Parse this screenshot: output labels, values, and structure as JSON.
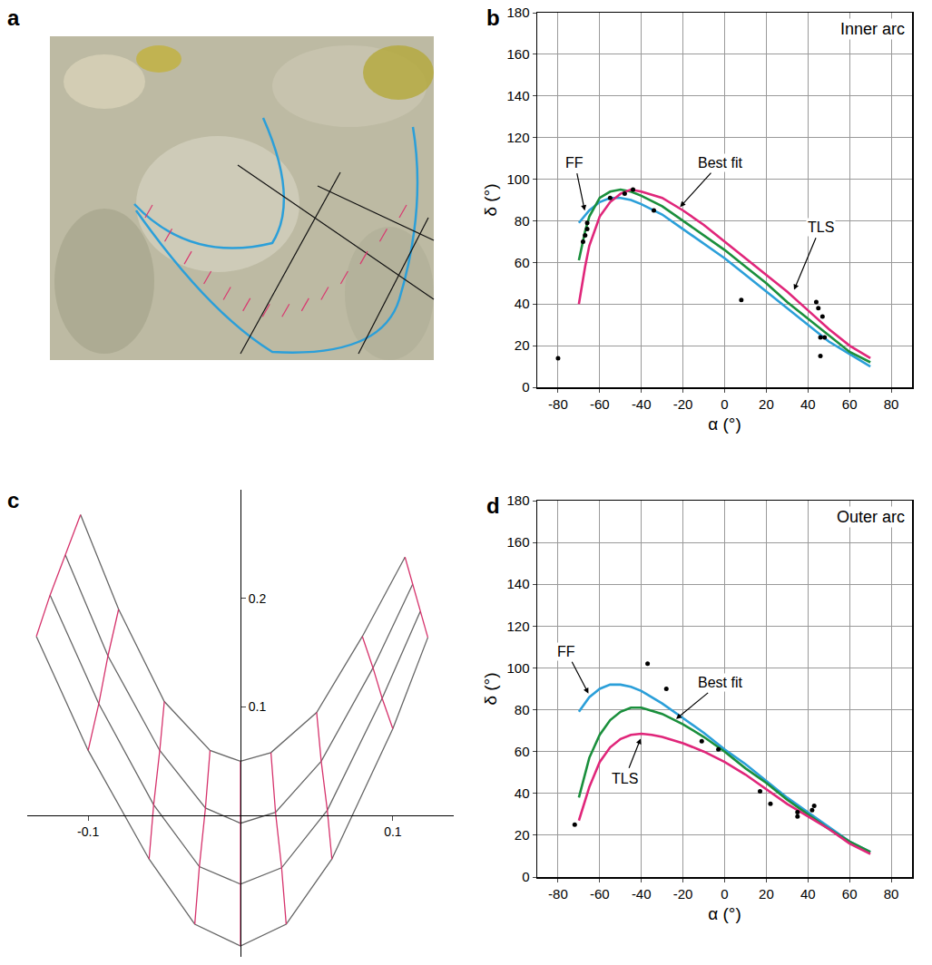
{
  "chart_data": [
    {
      "panel": "a",
      "type": "image"
    },
    {
      "panel": "b",
      "type": "line",
      "title": "Inner arc",
      "xlabel": "α (°)",
      "ylabel": "δ (°)",
      "xlim": [
        -90,
        90
      ],
      "xticks": [
        -80,
        -60,
        -40,
        -20,
        0,
        20,
        40,
        60,
        80
      ],
      "ylim": [
        0,
        180
      ],
      "yticks": [
        0,
        20,
        40,
        60,
        80,
        100,
        120,
        140,
        160,
        180
      ],
      "grid": true,
      "series": [
        {
          "name": "FF",
          "color": "#2b9fd9",
          "type": "line",
          "x": [
            -70,
            -65,
            -60,
            -55,
            -50,
            -45,
            -40,
            -30,
            -20,
            -10,
            0,
            10,
            20,
            30,
            40,
            50,
            60,
            70
          ],
          "values": [
            79,
            85,
            89,
            91,
            91,
            90,
            88,
            83,
            76,
            69,
            62,
            54,
            46,
            38,
            30,
            22,
            16,
            10
          ],
          "arrow_to": [
            -67,
            84
          ],
          "label_xy": [
            -72,
            108
          ]
        },
        {
          "name": "Best fit",
          "color": "#1a8f3c",
          "type": "line",
          "x": [
            -70,
            -67,
            -65,
            -60,
            -55,
            -50,
            -45,
            -40,
            -30,
            -20,
            -10,
            0,
            10,
            20,
            30,
            40,
            50,
            60,
            70
          ],
          "values": [
            61,
            75,
            82,
            91,
            94,
            95,
            94,
            92,
            87,
            80,
            73,
            66,
            58,
            50,
            41,
            33,
            25,
            17,
            12
          ],
          "arrow_to": [
            -22,
            86
          ],
          "label_xy": [
            -2,
            108
          ]
        },
        {
          "name": "TLS",
          "color": "#e0267a",
          "type": "line",
          "x": [
            -70,
            -67,
            -65,
            -60,
            -55,
            -50,
            -45,
            -40,
            -30,
            -20,
            -10,
            0,
            10,
            20,
            30,
            40,
            50,
            60,
            70
          ],
          "values": [
            40,
            58,
            68,
            82,
            89,
            93,
            95,
            94,
            91,
            85,
            78,
            70,
            62,
            54,
            46,
            37,
            28,
            20,
            14
          ],
          "arrow_to": [
            33,
            46
          ],
          "label_xy": [
            46,
            77
          ]
        },
        {
          "color": "#000000",
          "type": "scatter",
          "marker": "circle",
          "x": [
            -80,
            -68,
            -67,
            -66,
            -66,
            -55,
            -48,
            -44,
            -34,
            8,
            44,
            45,
            47,
            46,
            48,
            46
          ],
          "values": [
            14,
            70,
            73,
            76,
            79,
            91,
            93,
            95,
            85,
            42,
            41,
            38,
            34,
            24,
            24,
            15
          ]
        }
      ]
    },
    {
      "panel": "c",
      "type": "mesh",
      "xlim": [
        -0.14,
        0.14
      ],
      "xticks": [
        -0.1,
        0.1
      ],
      "ylim": [
        -0.13,
        0.3
      ],
      "yticks": [
        0.1,
        0.2
      ],
      "series": [
        {
          "color": "#666666",
          "x": [
            -0.105,
            -0.08,
            -0.05,
            -0.02,
            0,
            0.02,
            0.05,
            0.08,
            0.108
          ],
          "values": [
            0.277,
            0.19,
            0.105,
            0.06,
            0.05,
            0.058,
            0.095,
            0.165,
            0.238
          ]
        },
        {
          "color": "#666666",
          "x": [
            -0.115,
            -0.087,
            -0.053,
            -0.023,
            0,
            0.023,
            0.053,
            0.087,
            0.113
          ],
          "values": [
            0.24,
            0.147,
            0.06,
            0.007,
            -0.007,
            0.003,
            0.05,
            0.136,
            0.213
          ]
        },
        {
          "color": "#666666",
          "x": [
            -0.125,
            -0.093,
            -0.057,
            -0.027,
            0,
            0.027,
            0.057,
            0.093,
            0.118
          ],
          "values": [
            0.203,
            0.103,
            0.01,
            -0.047,
            -0.063,
            -0.048,
            0.005,
            0.108,
            0.188
          ]
        },
        {
          "color": "#666666",
          "x": [
            -0.134,
            -0.1,
            -0.06,
            -0.03,
            0,
            0.03,
            0.06,
            0.1,
            0.123
          ],
          "values": [
            0.165,
            0.06,
            -0.04,
            -0.1,
            -0.12,
            -0.1,
            -0.04,
            0.08,
            0.164
          ]
        }
      ]
    },
    {
      "panel": "d",
      "type": "line",
      "title": "Outer arc",
      "xlabel": "α (°)",
      "ylabel": "δ (°)",
      "xlim": [
        -90,
        90
      ],
      "xticks": [
        -80,
        -60,
        -40,
        -20,
        0,
        20,
        40,
        60,
        80
      ],
      "ylim": [
        0,
        180
      ],
      "yticks": [
        0,
        20,
        40,
        60,
        80,
        100,
        120,
        140,
        160,
        180
      ],
      "grid": true,
      "series": [
        {
          "name": "FF",
          "color": "#2b9fd9",
          "type": "line",
          "x": [
            -70,
            -65,
            -60,
            -55,
            -50,
            -45,
            -40,
            -30,
            -20,
            -10,
            0,
            10,
            20,
            30,
            40,
            50,
            60,
            70
          ],
          "values": [
            79,
            86,
            90,
            92,
            92,
            91,
            89,
            83,
            76,
            69,
            61,
            54,
            46,
            38,
            31,
            24,
            17,
            12
          ],
          "arrow_to": [
            -65,
            87
          ],
          "label_xy": [
            -76,
            108
          ]
        },
        {
          "name": "Best fit",
          "color": "#1a8f3c",
          "type": "line",
          "x": [
            -70,
            -65,
            -60,
            -55,
            -50,
            -45,
            -40,
            -30,
            -20,
            -10,
            0,
            10,
            20,
            30,
            40,
            50,
            60,
            70
          ],
          "values": [
            38,
            57,
            68,
            75,
            79,
            81,
            81,
            78,
            73,
            67,
            60,
            52,
            45,
            37,
            30,
            23,
            17,
            12
          ],
          "arrow_to": [
            -24,
            75
          ],
          "label_xy": [
            -2,
            93
          ]
        },
        {
          "name": "TLS",
          "color": "#e0267a",
          "type": "line",
          "x": [
            -70,
            -65,
            -60,
            -55,
            -50,
            -45,
            -40,
            -35,
            -30,
            -20,
            -10,
            0,
            10,
            20,
            30,
            40,
            50,
            60,
            70
          ],
          "values": [
            27,
            43,
            55,
            62,
            66,
            68,
            68.5,
            68,
            67,
            64,
            60,
            55,
            49,
            42,
            35,
            29,
            23,
            16,
            11
          ],
          "arrow_to": [
            -40,
            67
          ],
          "label_xy": [
            -48,
            47
          ]
        },
        {
          "color": "#000000",
          "type": "scatter",
          "marker": "circle",
          "x": [
            -72,
            -37,
            -28,
            -11,
            -3,
            17,
            22,
            35,
            35,
            42,
            43
          ],
          "values": [
            25,
            102,
            90,
            65,
            61,
            41,
            35,
            31,
            29,
            32,
            34
          ]
        }
      ]
    }
  ]
}
